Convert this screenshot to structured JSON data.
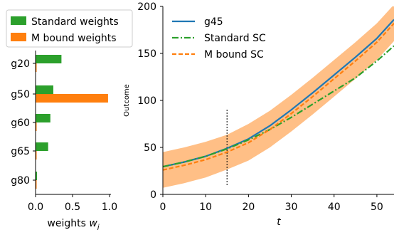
{
  "chart_data": [
    {
      "type": "bar",
      "orientation": "horizontal",
      "categories": [
        "g20",
        "g50",
        "g60",
        "g65",
        "g80"
      ],
      "series": [
        {
          "name": "Standard weights",
          "color": "#2ca02c",
          "values": [
            0.35,
            0.24,
            0.2,
            0.17,
            0.02
          ]
        },
        {
          "name": "M bound weights",
          "color": "#ff7f0e",
          "values": [
            0.0,
            0.98,
            0.0,
            0.0,
            0.0
          ]
        }
      ],
      "xlabel_text": "weights ",
      "xlabel_math": "w",
      "xlabel_sub": "j",
      "xlim": [
        0,
        1.0
      ],
      "xticks": [
        0.0,
        0.5,
        1.0
      ],
      "xtick_labels": [
        "0.0",
        "0.5",
        "1.0"
      ],
      "legend_position": "top (above panel)"
    },
    {
      "type": "line",
      "x": [
        0,
        5,
        10,
        15,
        20,
        25,
        30,
        35,
        40,
        45,
        50,
        54
      ],
      "series": [
        {
          "name": "g45",
          "color": "#1f77b4",
          "style": "solid",
          "values": [
            29.5,
            34.5,
            40.5,
            49,
            59,
            73,
            90,
            108,
            127,
            146,
            166,
            186
          ]
        },
        {
          "name": "Standard SC",
          "color": "#2ca02c",
          "style": "dashdot",
          "values": [
            29.5,
            34.5,
            40.5,
            48.5,
            58,
            69,
            82,
            96,
            110,
            124,
            142,
            158
          ]
        },
        {
          "name": "M bound SC",
          "color": "#ff7f0e",
          "style": "dashed",
          "values": [
            26,
            31,
            37,
            45,
            55,
            69,
            86,
            104,
            123,
            142,
            162,
            182
          ]
        }
      ],
      "band": {
        "color": "#ffbf86",
        "lower": [
          7,
          12,
          18,
          26.5,
          36,
          50,
          67,
          85,
          104,
          123,
          143,
          163
        ],
        "upper": [
          45,
          50,
          56,
          63.5,
          75,
          89,
          106,
          124,
          143,
          162,
          182,
          202
        ]
      },
      "vline": {
        "x": 15,
        "y_from": 10,
        "y_to": 90,
        "style": "dotted"
      },
      "xlabel": "t",
      "ylabel": "Outcome",
      "xlim": [
        0,
        54
      ],
      "ylim": [
        0,
        200
      ],
      "xticks": [
        0,
        10,
        20,
        30,
        40,
        50
      ],
      "yticks": [
        0,
        50,
        100,
        150,
        200
      ],
      "legend_position": "top-left"
    }
  ]
}
